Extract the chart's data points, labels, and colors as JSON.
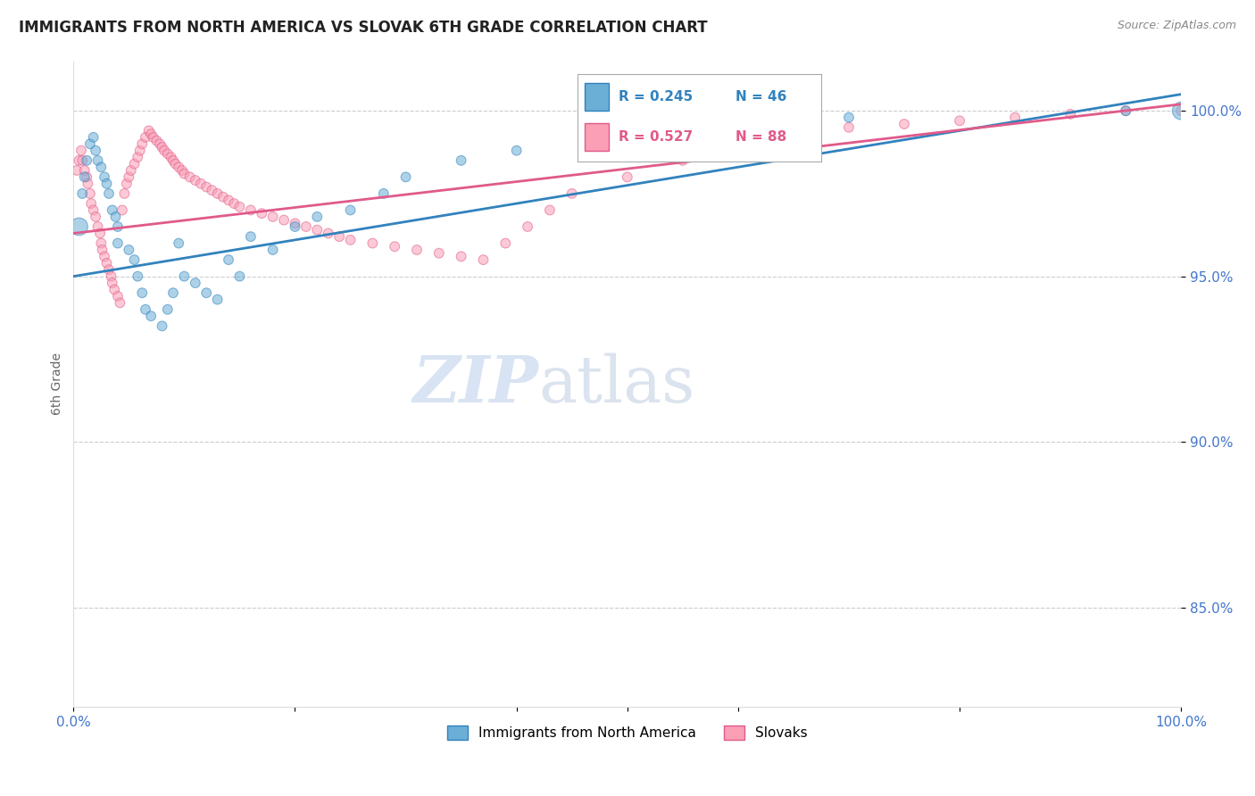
{
  "title": "IMMIGRANTS FROM NORTH AMERICA VS SLOVAK 6TH GRADE CORRELATION CHART",
  "source": "Source: ZipAtlas.com",
  "ylabel": "6th Grade",
  "y_tick_values": [
    0.85,
    0.9,
    0.95,
    1.0
  ],
  "x_range": [
    0.0,
    1.0
  ],
  "y_range": [
    0.82,
    1.015
  ],
  "legend_blue_label": "Immigrants from North America",
  "legend_pink_label": "Slovaks",
  "r_blue": 0.245,
  "n_blue": 46,
  "r_pink": 0.527,
  "n_pink": 88,
  "blue_color": "#6baed6",
  "pink_color": "#fa9fb5",
  "trendline_blue": "#3182bd",
  "trendline_pink": "#e05a8a",
  "blue_trend_x": [
    0.0,
    1.0
  ],
  "blue_trend_y": [
    0.95,
    1.005
  ],
  "pink_trend_x": [
    0.0,
    1.0
  ],
  "pink_trend_y": [
    0.963,
    1.002
  ],
  "blue_points_x": [
    0.005,
    0.008,
    0.01,
    0.012,
    0.015,
    0.018,
    0.02,
    0.022,
    0.025,
    0.028,
    0.03,
    0.032,
    0.035,
    0.038,
    0.04,
    0.04,
    0.05,
    0.055,
    0.058,
    0.062,
    0.065,
    0.07,
    0.08,
    0.085,
    0.09,
    0.095,
    0.1,
    0.11,
    0.12,
    0.13,
    0.14,
    0.15,
    0.16,
    0.18,
    0.2,
    0.22,
    0.25,
    0.28,
    0.3,
    0.35,
    0.4,
    0.5,
    0.6,
    0.7,
    0.95,
    1.0
  ],
  "blue_points_y": [
    0.965,
    0.975,
    0.98,
    0.985,
    0.99,
    0.992,
    0.988,
    0.985,
    0.983,
    0.98,
    0.978,
    0.975,
    0.97,
    0.968,
    0.965,
    0.96,
    0.958,
    0.955,
    0.95,
    0.945,
    0.94,
    0.938,
    0.935,
    0.94,
    0.945,
    0.96,
    0.95,
    0.948,
    0.945,
    0.943,
    0.955,
    0.95,
    0.962,
    0.958,
    0.965,
    0.968,
    0.97,
    0.975,
    0.98,
    0.985,
    0.988,
    0.992,
    0.995,
    0.998,
    1.0,
    1.0
  ],
  "blue_points_size": [
    200,
    60,
    60,
    60,
    60,
    60,
    60,
    60,
    60,
    60,
    60,
    60,
    60,
    60,
    60,
    60,
    60,
    60,
    60,
    60,
    60,
    60,
    60,
    60,
    60,
    60,
    60,
    60,
    60,
    60,
    60,
    60,
    60,
    60,
    60,
    60,
    60,
    60,
    60,
    60,
    60,
    60,
    60,
    60,
    60,
    200
  ],
  "pink_points_x": [
    0.003,
    0.005,
    0.007,
    0.008,
    0.01,
    0.012,
    0.013,
    0.015,
    0.016,
    0.018,
    0.02,
    0.022,
    0.024,
    0.025,
    0.026,
    0.028,
    0.03,
    0.032,
    0.034,
    0.035,
    0.037,
    0.04,
    0.042,
    0.044,
    0.046,
    0.048,
    0.05,
    0.052,
    0.055,
    0.058,
    0.06,
    0.062,
    0.065,
    0.068,
    0.07,
    0.072,
    0.075,
    0.078,
    0.08,
    0.082,
    0.085,
    0.088,
    0.09,
    0.092,
    0.095,
    0.098,
    0.1,
    0.105,
    0.11,
    0.115,
    0.12,
    0.125,
    0.13,
    0.135,
    0.14,
    0.145,
    0.15,
    0.16,
    0.17,
    0.18,
    0.19,
    0.2,
    0.21,
    0.22,
    0.23,
    0.24,
    0.25,
    0.27,
    0.29,
    0.31,
    0.33,
    0.35,
    0.37,
    0.39,
    0.41,
    0.43,
    0.45,
    0.5,
    0.55,
    0.6,
    0.65,
    0.7,
    0.75,
    0.8,
    0.85,
    0.9,
    0.95,
    1.0
  ],
  "pink_points_y": [
    0.982,
    0.985,
    0.988,
    0.985,
    0.982,
    0.98,
    0.978,
    0.975,
    0.972,
    0.97,
    0.968,
    0.965,
    0.963,
    0.96,
    0.958,
    0.956,
    0.954,
    0.952,
    0.95,
    0.948,
    0.946,
    0.944,
    0.942,
    0.97,
    0.975,
    0.978,
    0.98,
    0.982,
    0.984,
    0.986,
    0.988,
    0.99,
    0.992,
    0.994,
    0.993,
    0.992,
    0.991,
    0.99,
    0.989,
    0.988,
    0.987,
    0.986,
    0.985,
    0.984,
    0.983,
    0.982,
    0.981,
    0.98,
    0.979,
    0.978,
    0.977,
    0.976,
    0.975,
    0.974,
    0.973,
    0.972,
    0.971,
    0.97,
    0.969,
    0.968,
    0.967,
    0.966,
    0.965,
    0.964,
    0.963,
    0.962,
    0.961,
    0.96,
    0.959,
    0.958,
    0.957,
    0.956,
    0.955,
    0.96,
    0.965,
    0.97,
    0.975,
    0.98,
    0.985,
    0.99,
    0.993,
    0.995,
    0.996,
    0.997,
    0.998,
    0.999,
    1.0,
    1.0
  ],
  "pink_points_size": [
    60,
    60,
    60,
    60,
    60,
    60,
    60,
    60,
    60,
    60,
    60,
    60,
    60,
    60,
    60,
    60,
    60,
    60,
    60,
    60,
    60,
    60,
    60,
    60,
    60,
    60,
    60,
    60,
    60,
    60,
    60,
    60,
    60,
    60,
    60,
    60,
    60,
    60,
    60,
    60,
    60,
    60,
    60,
    60,
    60,
    60,
    60,
    60,
    60,
    60,
    60,
    60,
    60,
    60,
    60,
    60,
    60,
    60,
    60,
    60,
    60,
    60,
    60,
    60,
    60,
    60,
    60,
    60,
    60,
    60,
    60,
    60,
    60,
    60,
    60,
    60,
    60,
    60,
    60,
    60,
    60,
    60,
    60,
    60,
    60,
    60,
    60,
    60
  ],
  "watermark_zip": "ZIP",
  "watermark_atlas": "atlas",
  "grid_color": "#cccccc",
  "background_color": "#ffffff",
  "tick_color": "#4477cc"
}
